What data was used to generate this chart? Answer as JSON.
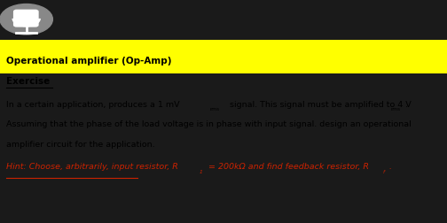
{
  "bg_color": "#1a1a1a",
  "content_bg": "#ffffff",
  "header_bg": "#ffff00",
  "title": "Operational amplifier (Op-Amp)",
  "section": "Exercise",
  "body_line1a": "In a certain application, produces a 1 mV",
  "body_line1b": "rms",
  "body_line1c": " signal. This signal must be amplified to 4 V",
  "body_line1d": "rms",
  "body_line1e": ".",
  "body_line2": "Assuming that the phase of the load voltage is in phase with input signal. design an operational",
  "body_line3": "amplifier circuit for the application.",
  "hint_prefix": "Hint: Choose, arbitrarily, input resistor, R",
  "hint_sub1": "1",
  "hint_mid": " = 200kΩ and find feedback resistor, R",
  "hint_subf": "f",
  "hint_end": ".",
  "hint_color": "#cc2200",
  "black": "#000000",
  "icon_bg": "#555555",
  "icon_circle_color": "#888888"
}
